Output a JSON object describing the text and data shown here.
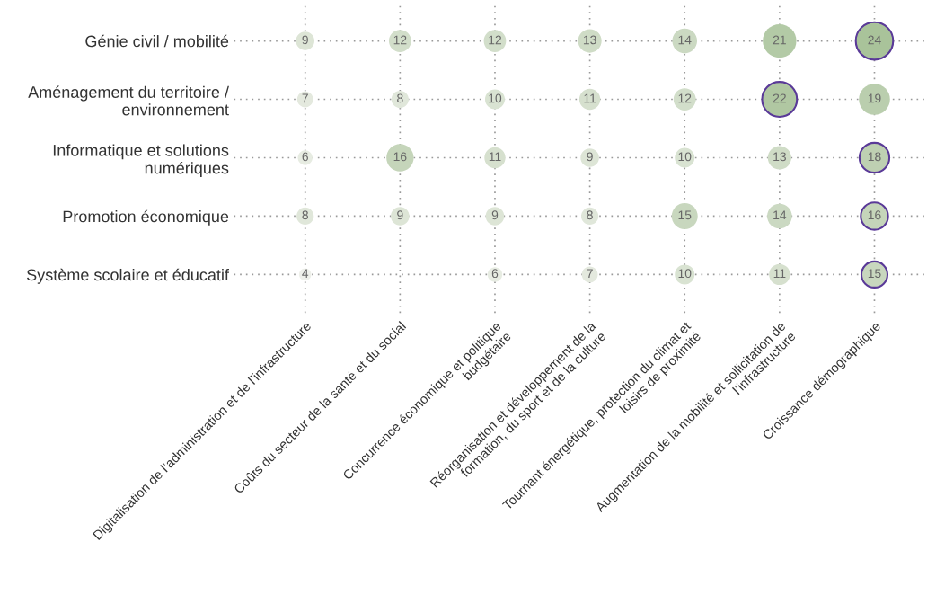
{
  "chart_data": {
    "type": "heatmap",
    "categories": [
      "Digitalisation de l’administration et de l’infrastructure",
      "Coûts du secteur de la santé et du social",
      "Concurrence économique et politique\nbudgétaire",
      "Réorganisation et développement de la\nformation, du sport et de la culture",
      "Tournant énergétique, protection du climat et\nloisirs de proximité",
      "Augmentation de la mobilité et sollicitation de\nl’infrastructure",
      "Croissance démographique"
    ],
    "y_categories": [
      "Génie civil / mobilité",
      "Aménagement du territoire /\nenvironnement",
      "Informatique et solutions\nnumériques",
      "Promotion économique",
      "Système scolaire et éducatif"
    ],
    "cells": [
      [
        9,
        12,
        12,
        13,
        14,
        21,
        24
      ],
      [
        7,
        8,
        10,
        11,
        12,
        22,
        19
      ],
      [
        6,
        16,
        11,
        9,
        10,
        13,
        18
      ],
      [
        8,
        9,
        9,
        8,
        15,
        14,
        16
      ],
      [
        4,
        null,
        6,
        7,
        10,
        11,
        15
      ]
    ],
    "cell_labels": [
      [
        "9",
        "12",
        "12",
        "13",
        "14",
        "21",
        "24"
      ],
      [
        "7",
        "8",
        "10",
        "11",
        "12",
        "22",
        "19"
      ],
      [
        "6",
        "16",
        "11",
        "9",
        "10",
        "13",
        "18"
      ],
      [
        "8",
        "9",
        "9",
        "8",
        "15",
        "14",
        "16"
      ],
      [
        "4",
        null,
        "6",
        "7",
        "10",
        "11",
        "15"
      ]
    ],
    "grid": true
  }
}
